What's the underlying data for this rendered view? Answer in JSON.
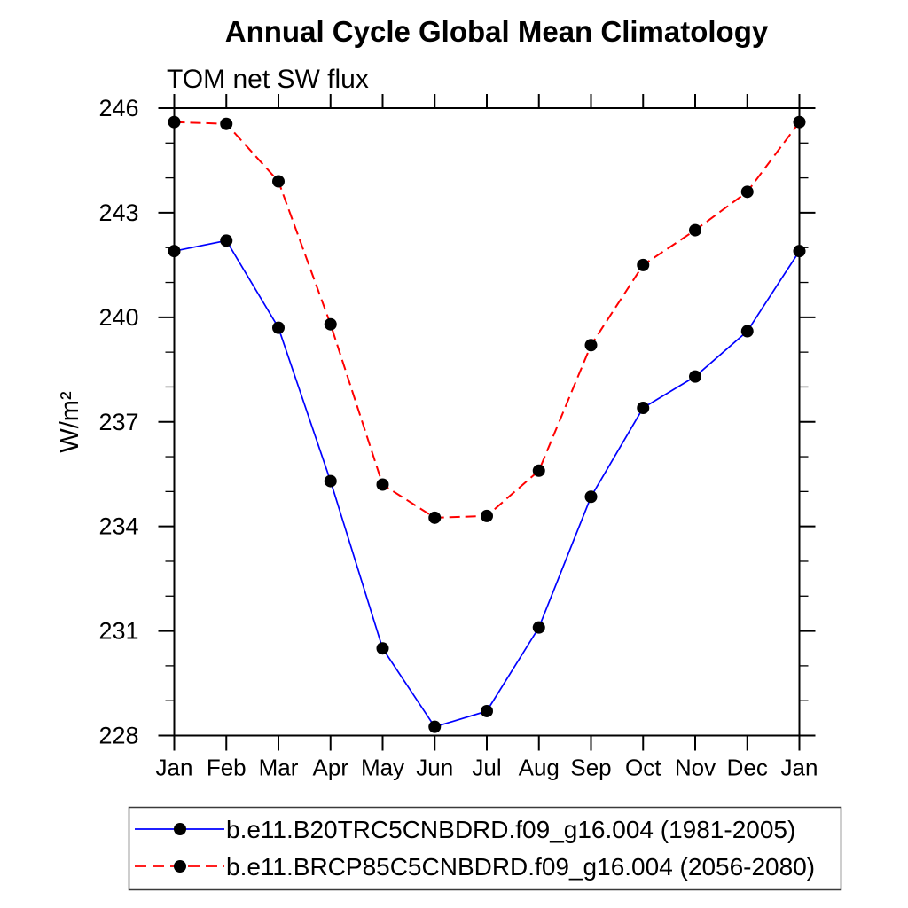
{
  "chart_data": {
    "type": "line",
    "title": "Annual Cycle Global Mean Climatology",
    "subtitle": "TOM net SW flux",
    "ylabel": "W/m²",
    "xlabel": "",
    "x_categories": [
      "Jan",
      "Feb",
      "Mar",
      "Apr",
      "May",
      "Jun",
      "Jul",
      "Aug",
      "Sep",
      "Oct",
      "Nov",
      "Dec",
      "Jan"
    ],
    "ylim": [
      228,
      246
    ],
    "ytick_major_interval": 3,
    "ytick_minor_interval": 1,
    "ytick_labels": [
      "246",
      "243",
      "240",
      "237",
      "234",
      "231",
      "228"
    ],
    "grid": false,
    "axis_color": "#000000",
    "legend_position": "bottom",
    "series": [
      {
        "name": "b.e11.B20TRC5CNBDRD.f09_g16.004 (1981-2005)",
        "color": "#0000ff",
        "line_style": "solid",
        "marker": "filled-circle",
        "marker_color": "#000000",
        "values": [
          241.9,
          242.2,
          239.7,
          235.3,
          230.5,
          228.25,
          228.7,
          231.1,
          234.85,
          237.4,
          238.3,
          239.6,
          241.9
        ]
      },
      {
        "name": "b.e11.BRCP85C5CNBDRD.f09_g16.004 (2056-2080)",
        "color": "#ff0000",
        "line_style": "dashed",
        "marker": "filled-circle",
        "marker_color": "#000000",
        "values": [
          245.6,
          245.55,
          243.9,
          239.8,
          235.2,
          234.25,
          234.3,
          235.6,
          239.2,
          241.5,
          242.5,
          243.6,
          245.6
        ]
      }
    ]
  }
}
